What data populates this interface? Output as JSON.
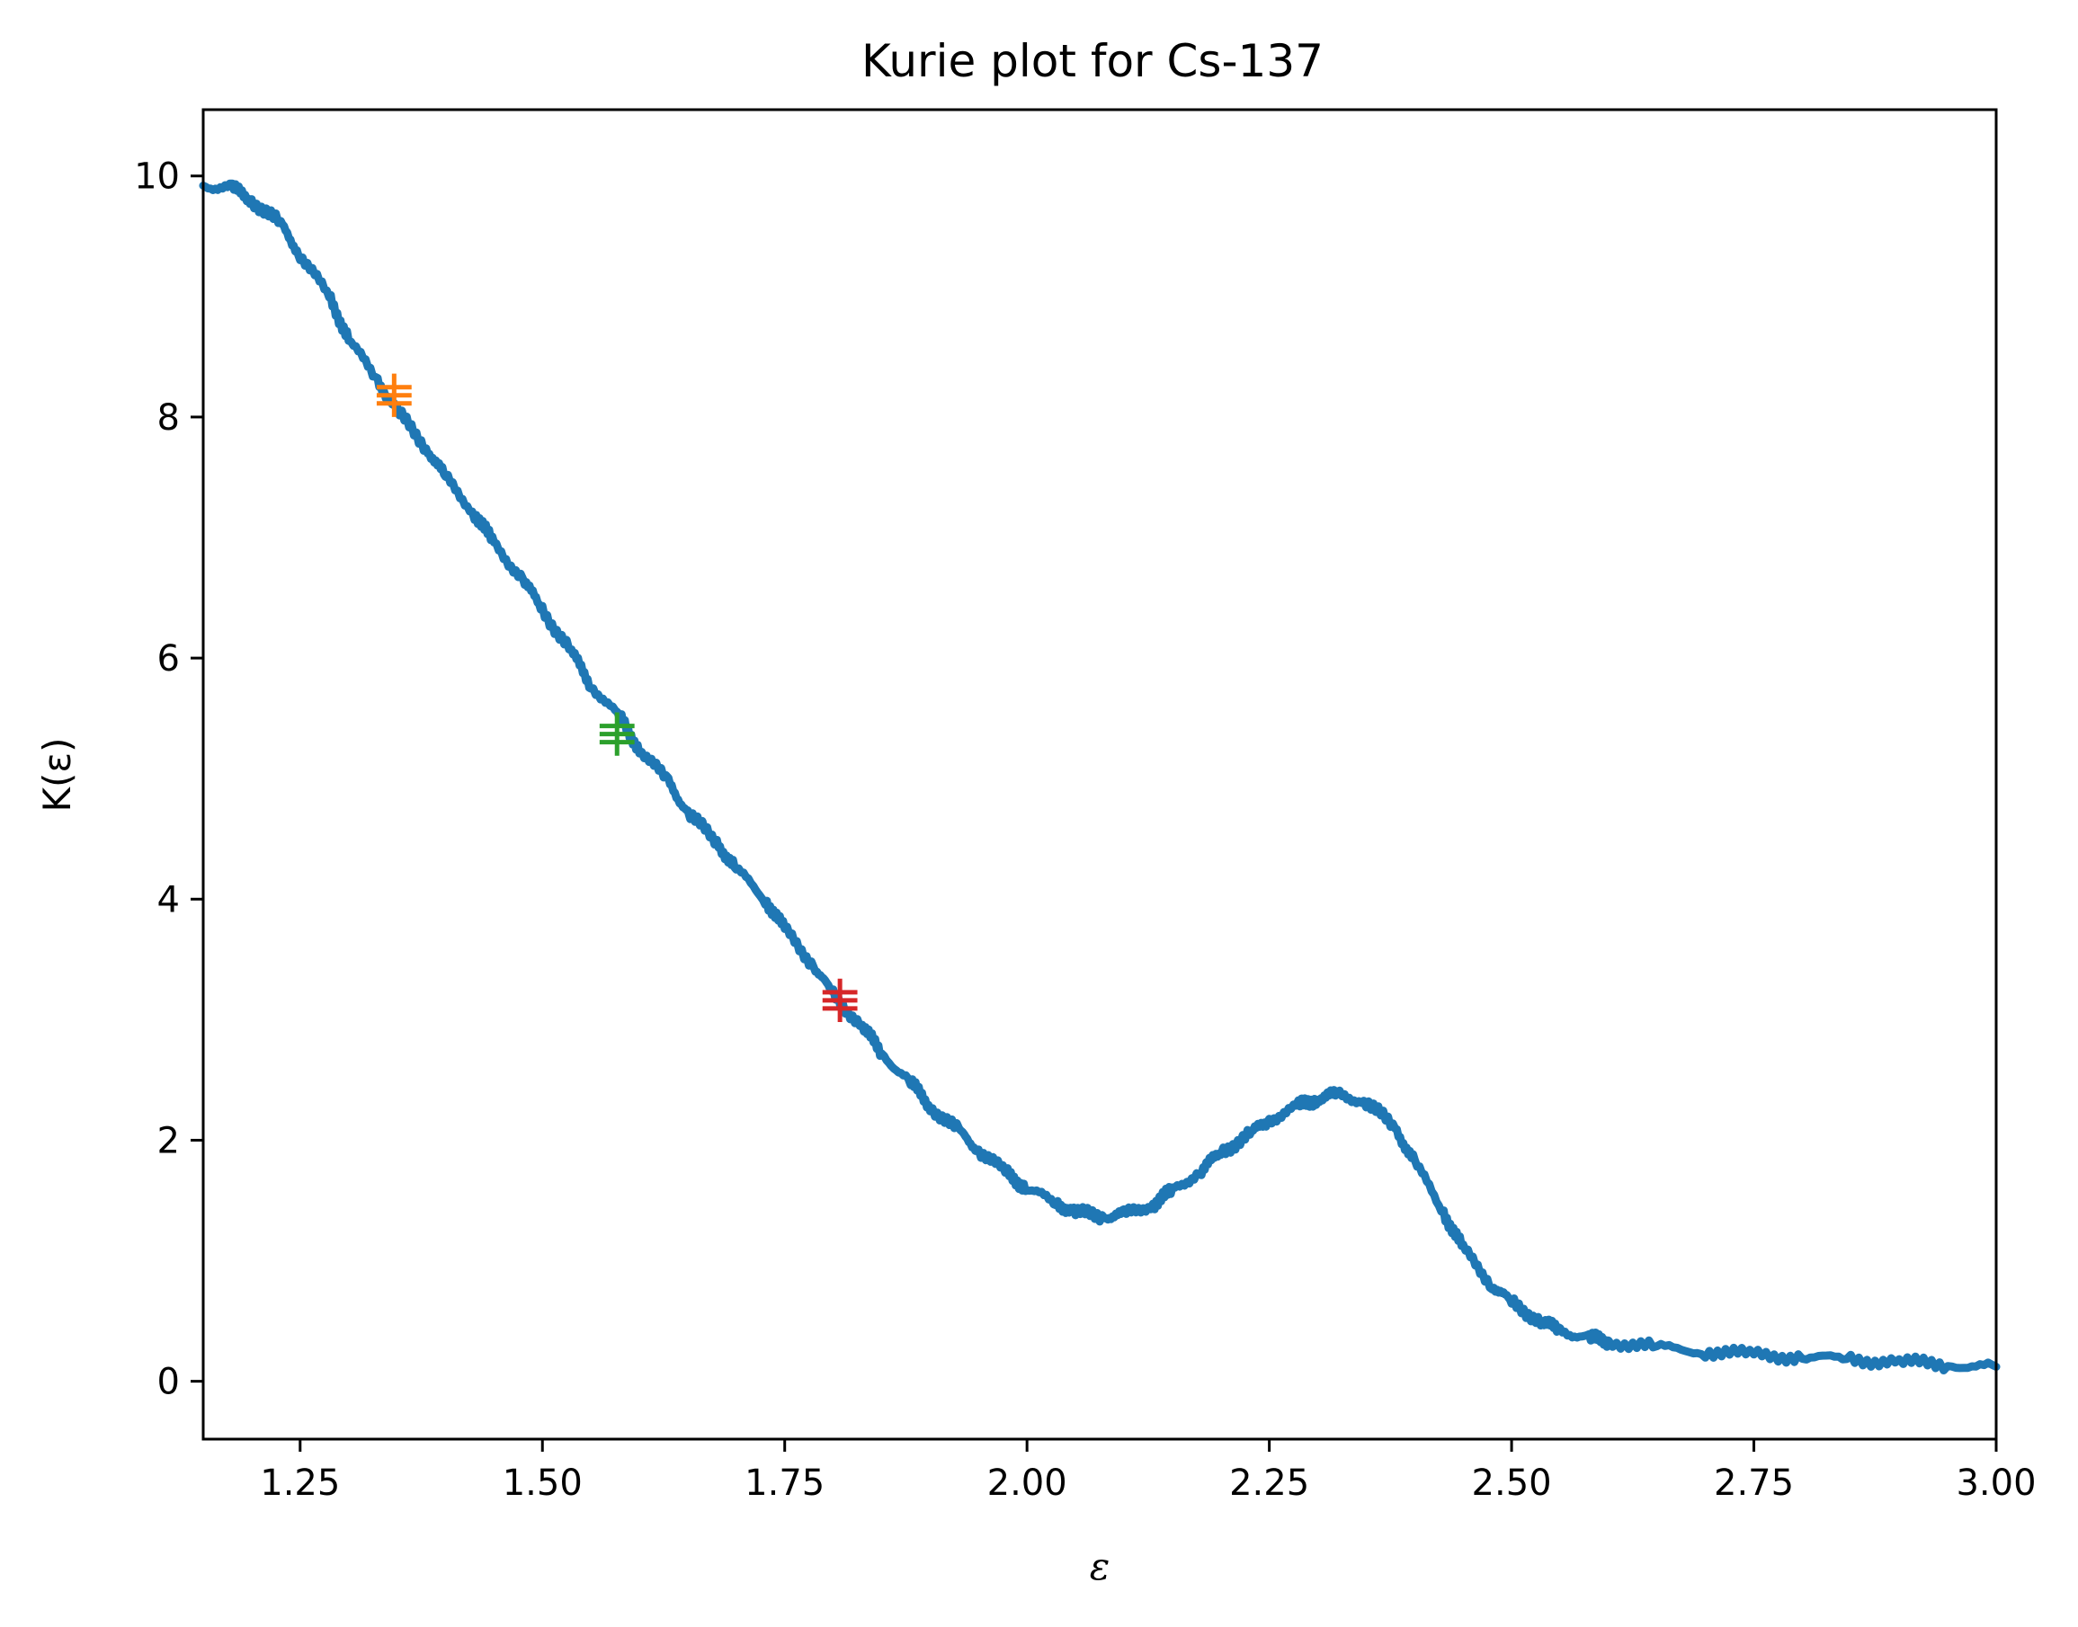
{
  "chart_data": {
    "type": "line",
    "title": "Kurie plot for Cs-137",
    "xlabel": "ε",
    "ylabel": "K(ε)",
    "xlim": [
      1.15,
      3.0
    ],
    "ylim": [
      -0.48,
      10.55
    ],
    "grid": false,
    "legend": "none",
    "xticks": [
      "1.25",
      "1.50",
      "1.75",
      "2.00",
      "2.25",
      "2.50",
      "2.75",
      "3.00"
    ],
    "yticks": [
      "0",
      "2",
      "4",
      "6",
      "8",
      "10"
    ],
    "series": [
      {
        "color": "#1f77b4",
        "x": [
          1.15,
          1.18,
          1.2,
          1.23,
          1.25,
          1.28,
          1.3,
          1.33,
          1.35,
          1.38,
          1.4,
          1.43,
          1.45,
          1.48,
          1.5,
          1.53,
          1.55,
          1.58,
          1.6,
          1.63,
          1.65,
          1.68,
          1.7,
          1.73,
          1.75,
          1.78,
          1.8,
          1.83,
          1.85,
          1.88,
          1.9,
          1.93,
          1.95,
          1.98,
          2.0,
          2.03,
          2.05,
          2.08,
          2.1,
          2.13,
          2.15,
          2.18,
          2.2,
          2.23,
          2.25,
          2.28,
          2.3,
          2.32,
          2.35,
          2.38,
          2.4,
          2.43,
          2.45,
          2.48,
          2.5,
          2.53,
          2.55,
          2.58,
          2.6,
          2.65,
          2.7,
          2.75,
          2.8,
          2.85,
          2.9,
          2.95,
          3.0
        ],
        "y": [
          9.92,
          9.9,
          9.8,
          9.6,
          9.35,
          9.0,
          8.65,
          8.3,
          8.05,
          7.75,
          7.5,
          7.2,
          6.95,
          6.65,
          6.4,
          6.05,
          5.78,
          5.5,
          5.25,
          4.97,
          4.72,
          4.47,
          4.25,
          4.0,
          3.75,
          3.45,
          3.2,
          2.95,
          2.72,
          2.48,
          2.28,
          2.07,
          1.92,
          1.72,
          1.6,
          1.48,
          1.4,
          1.37,
          1.38,
          1.47,
          1.58,
          1.75,
          1.9,
          2.05,
          2.17,
          2.28,
          2.35,
          2.38,
          2.32,
          2.1,
          1.82,
          1.4,
          1.1,
          0.8,
          0.65,
          0.5,
          0.42,
          0.36,
          0.33,
          0.28,
          0.25,
          0.22,
          0.2,
          0.18,
          0.16,
          0.14,
          0.12
        ]
      }
    ],
    "markers": [
      {
        "x": 1.347,
        "y": 8.18,
        "color": "#ff7f0e",
        "xerr": 0.018,
        "yerr": 0.18
      },
      {
        "x": 1.577,
        "y": 5.37,
        "color": "#2ca02c",
        "xerr": 0.018,
        "yerr": 0.18
      },
      {
        "x": 1.807,
        "y": 3.16,
        "color": "#d62728",
        "xerr": 0.018,
        "yerr": 0.18
      }
    ]
  }
}
